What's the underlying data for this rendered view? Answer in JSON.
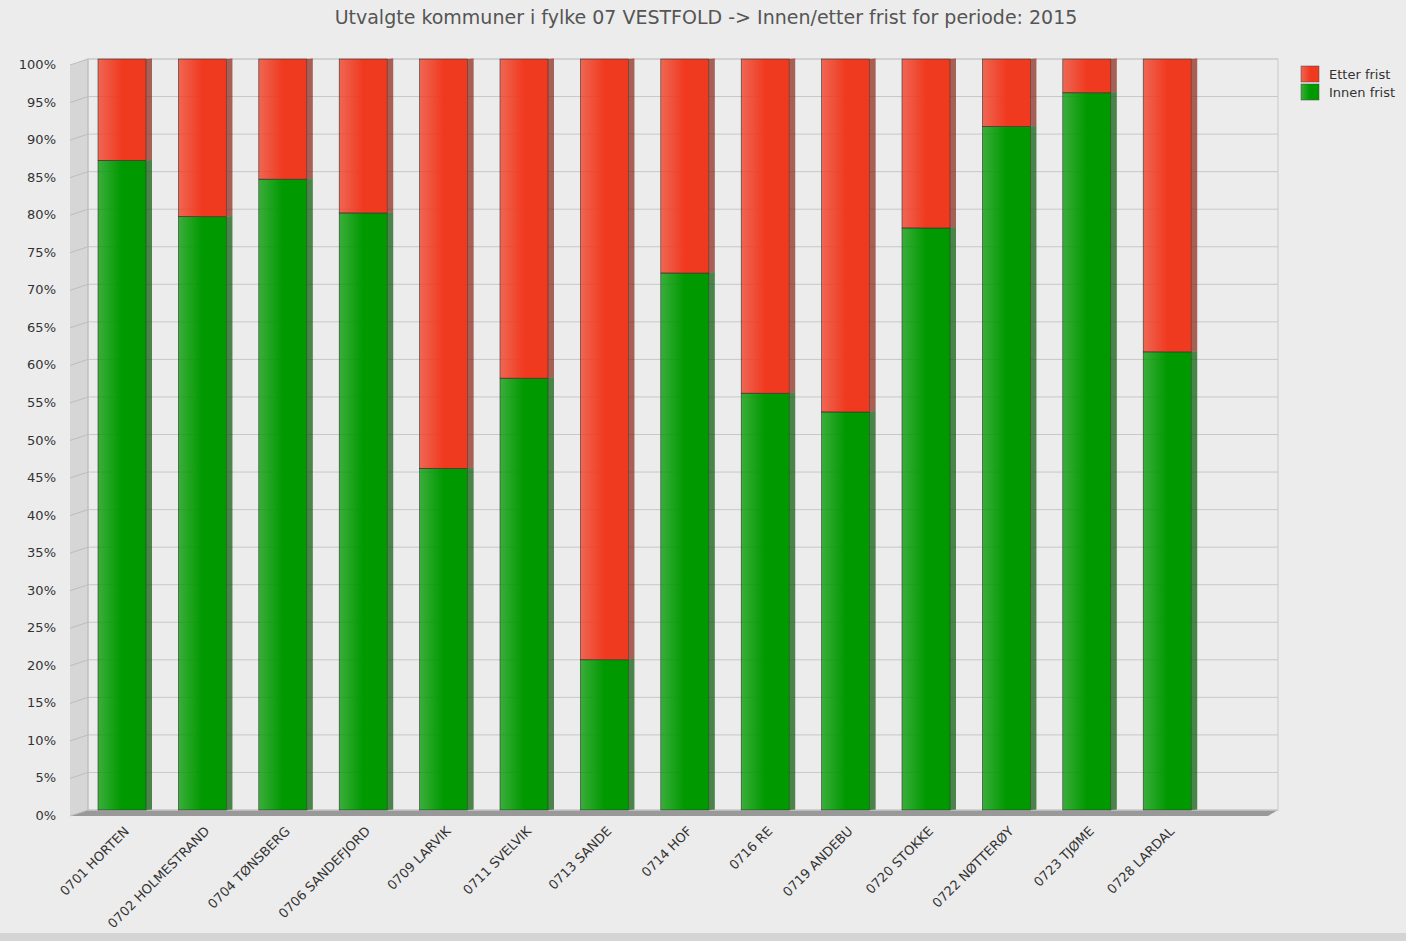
{
  "chart_data": {
    "type": "bar",
    "stacked": true,
    "grid": true,
    "legend": "top-right",
    "title": "Utvalgte kommuner i fylke 07 VESTFOLD -> Innen/etter frist for periode:  2015",
    "categories": [
      "0701 HORTEN",
      "0702 HOLMESTRAND",
      "0704 TØNSBERG",
      "0706 SANDEFJORD",
      "0709 LARVIK",
      "0711 SVELVIK",
      "0713 SANDE",
      "0714 HOF",
      "0716 RE",
      "0719 ANDEBU",
      "0720 STOKKE",
      "0722 NØTTERØY",
      "0723 TJØME",
      "0728 LARDAL"
    ],
    "series": [
      {
        "name": "Innen frist",
        "color": "#009900",
        "values": [
          86.5,
          79,
          84,
          79.5,
          45.5,
          57.5,
          20,
          71.5,
          55.5,
          53,
          77.5,
          91,
          95.5,
          61
        ]
      },
      {
        "name": "Etter frist",
        "color": "#f03a20",
        "values": [
          13.5,
          21,
          16,
          20.5,
          54.5,
          42.5,
          80,
          28.5,
          44.5,
          47,
          22.5,
          9,
          4.5,
          39
        ]
      }
    ],
    "ylim": [
      0,
      100
    ],
    "yticks": [
      {
        "value": 0,
        "label": "0%"
      },
      {
        "value": 5,
        "label": "5%"
      },
      {
        "value": 10,
        "label": "10%"
      },
      {
        "value": 15,
        "label": "15%"
      },
      {
        "value": 20,
        "label": "20%"
      },
      {
        "value": 25,
        "label": "25%"
      },
      {
        "value": 30,
        "label": "30%"
      },
      {
        "value": 35,
        "label": "35%"
      },
      {
        "value": 40,
        "label": "40%"
      },
      {
        "value": 45,
        "label": "45%"
      },
      {
        "value": 50,
        "label": "50%"
      },
      {
        "value": 55,
        "label": "55%"
      },
      {
        "value": 60,
        "label": "60%"
      },
      {
        "value": 65,
        "label": "65%"
      },
      {
        "value": 70,
        "label": "70%"
      },
      {
        "value": 75,
        "label": "75%"
      },
      {
        "value": 80,
        "label": "80%"
      },
      {
        "value": 85,
        "label": "85%"
      },
      {
        "value": 90,
        "label": "90%"
      },
      {
        "value": 95,
        "label": "95%"
      },
      {
        "value": 100,
        "label": "100%"
      }
    ]
  }
}
